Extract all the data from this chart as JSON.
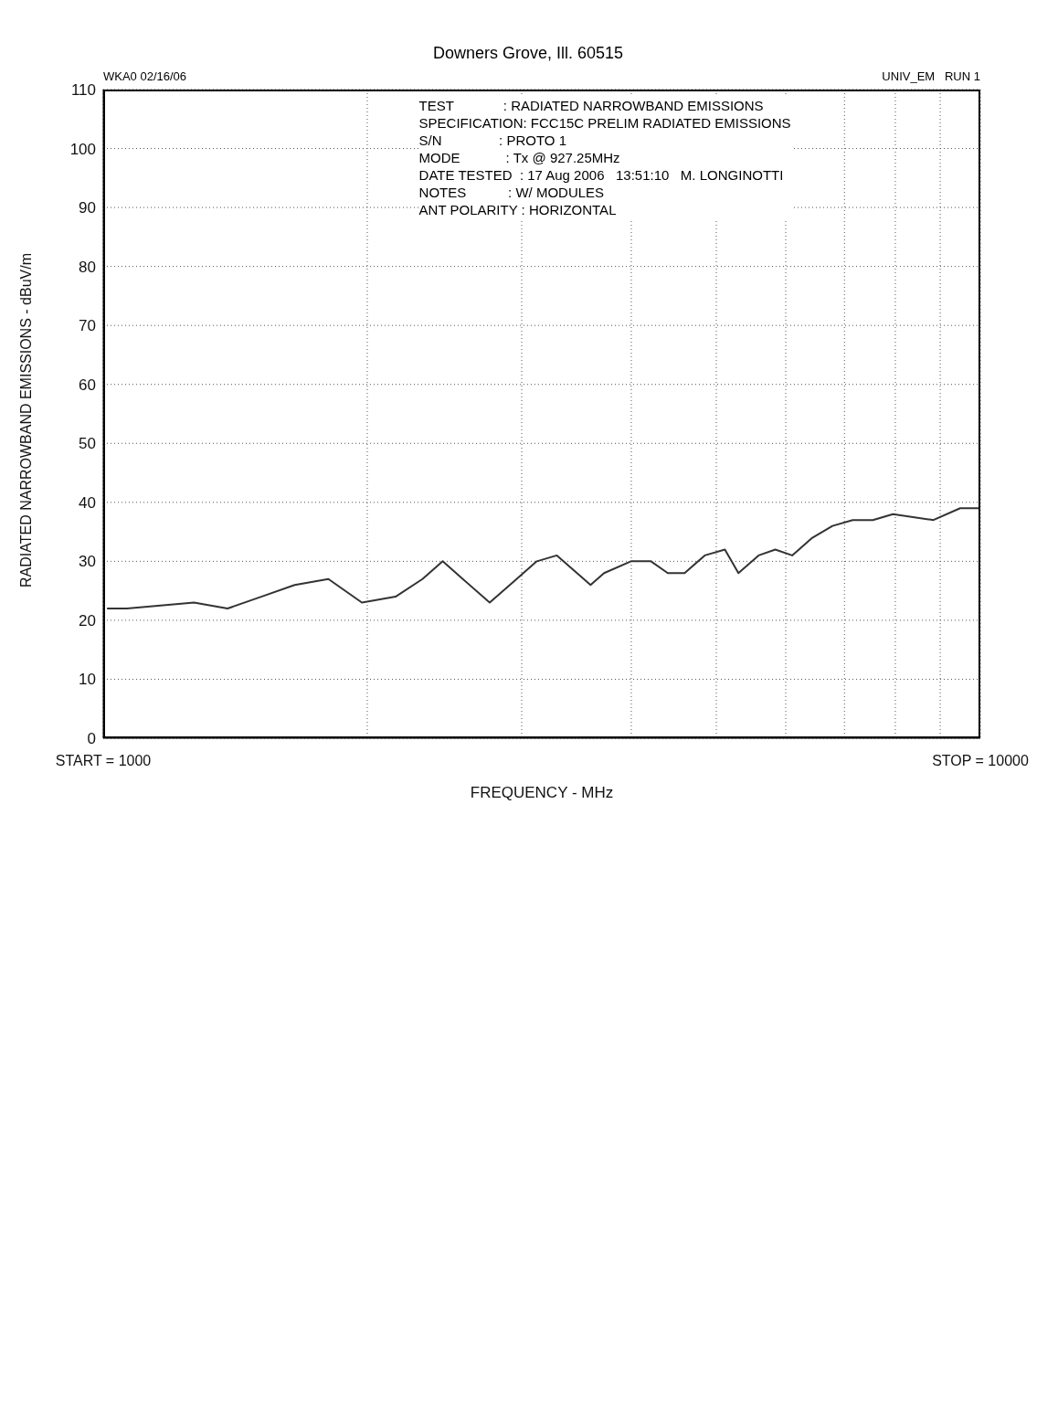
{
  "chart_data": {
    "type": "line",
    "subtitle": "Downers Grove, Ill. 60515",
    "xlabel": "FREQUENCY - MHz",
    "ylabel": "RADIATED NARROWBAND EMISSIONS - dBuV/m",
    "annotations": [
      "WKA0 02/16/06",
      "UNIV_EM   RUN 1",
      "TEST             : RADIATED NARROWBAND EMISSIONS",
      "SPECIFICATION: FCC15C PRELIM RADIATED EMISSIONS",
      "S/N               : PROTO 1",
      "MODE            : Tx @ 927.25MHz",
      "DATE TESTED  : 17 Aug 2006   13:51:10   M. LONGINOTTI",
      "NOTES           : W/ MODULES",
      "ANT POLARITY : HORIZONTAL"
    ],
    "x": [
      1010,
      1064,
      1269,
      1386,
      1514,
      1653,
      1806,
      1972,
      2154,
      2312,
      2438,
      2570,
      2758,
      2960,
      3121,
      3290,
      3531,
      3594,
      3724,
      3997,
      4212,
      4402,
      4601,
      4851,
      5114,
      5299,
      5587,
      5838,
      6102,
      6434,
      6783,
      7152,
      7541,
      7950,
      8841,
      9484,
      10000
    ],
    "series": [
      {
        "color": "#333333",
        "values": [
          22,
          22,
          23,
          22,
          24,
          26,
          27,
          23,
          24,
          27,
          30,
          27,
          23,
          27,
          30,
          31,
          27,
          26,
          28,
          30,
          30,
          28,
          28,
          31,
          32,
          28,
          31,
          32,
          31,
          34,
          36,
          37,
          37,
          38,
          37,
          39,
          39
        ]
      }
    ],
    "xlim": [
      1000,
      10000
    ],
    "ylim": [
      0,
      110
    ],
    "xticks": [
      {
        "value": 1000,
        "label": "START = 1000"
      },
      {
        "value": 2000,
        "label": null
      },
      {
        "value": 3000,
        "label": null
      },
      {
        "value": 4000,
        "label": null
      },
      {
        "value": 5000,
        "label": null
      },
      {
        "value": 6000,
        "label": null
      },
      {
        "value": 7000,
        "label": null
      },
      {
        "value": 8000,
        "label": null
      },
      {
        "value": 9000,
        "label": null
      },
      {
        "value": 10000,
        "label": "STOP = 10000"
      }
    ],
    "yticks": [
      0,
      10,
      20,
      30,
      40,
      50,
      60,
      70,
      80,
      90,
      100,
      110
    ],
    "log": "x",
    "grid": true,
    "legend": false,
    "marker": "none",
    "line_style": "solid"
  }
}
